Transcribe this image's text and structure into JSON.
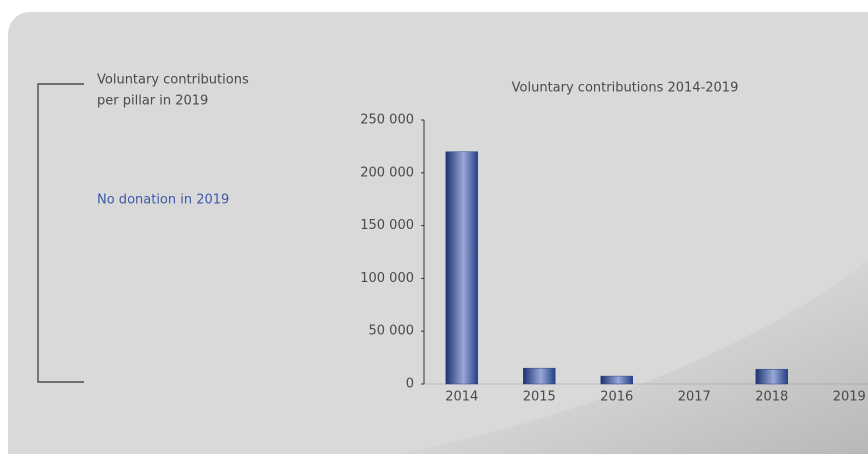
{
  "panel": {
    "heading": [
      "Voluntary contributions",
      "per pillar in 2019"
    ],
    "note": "No donation in 2019"
  },
  "chart_data": {
    "type": "bar",
    "title": "Voluntary contributions 2014-2019",
    "categories": [
      "2014",
      "2015",
      "2016",
      "2017",
      "2018",
      "2019"
    ],
    "values": [
      220000,
      15000,
      7500,
      0,
      14000,
      0
    ],
    "color": "#2a4790",
    "ylim": [
      0,
      250000
    ],
    "yticks": [
      0,
      {
        "value": 50000,
        "label": "50 000"
      },
      {
        "value": 100000,
        "label": "100 000"
      },
      {
        "value": 150000,
        "label": "150 000"
      },
      {
        "value": 200000,
        "label": "200 000"
      },
      {
        "value": 250000,
        "label": "250 000"
      }
    ],
    "grid": false
  }
}
